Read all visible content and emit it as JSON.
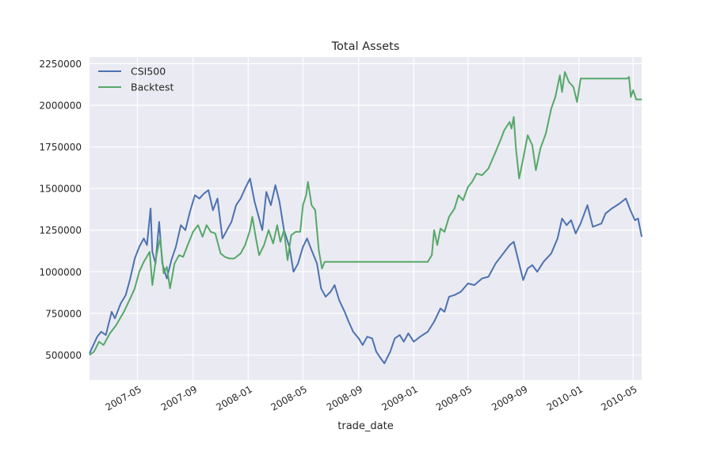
{
  "chart_data": {
    "type": "line",
    "title": "Total Assets",
    "xlabel": "trade_date",
    "ylabel": "",
    "xlim": [
      "2007-01-15",
      "2010-05-20"
    ],
    "ylim": [
      350000,
      2290000
    ],
    "grid": true,
    "legend_position": "top-left",
    "x_ticks": [
      "2007-05",
      "2007-09",
      "2008-01",
      "2008-05",
      "2008-09",
      "2009-01",
      "2009-05",
      "2009-09",
      "2010-01",
      "2010-05"
    ],
    "y_ticks": [
      500000,
      750000,
      1000000,
      1250000,
      1500000,
      1750000,
      2000000,
      2250000
    ],
    "series": [
      {
        "name": "CSI500",
        "color": "#4C72B0",
        "points": [
          [
            "2007-01-15",
            510000
          ],
          [
            "2007-02-01",
            610000
          ],
          [
            "2007-02-10",
            640000
          ],
          [
            "2007-02-20",
            620000
          ],
          [
            "2007-03-05",
            760000
          ],
          [
            "2007-03-12",
            720000
          ],
          [
            "2007-03-25",
            810000
          ],
          [
            "2007-04-05",
            860000
          ],
          [
            "2007-04-15",
            960000
          ],
          [
            "2007-04-25",
            1080000
          ],
          [
            "2007-05-05",
            1150000
          ],
          [
            "2007-05-15",
            1200000
          ],
          [
            "2007-05-22",
            1160000
          ],
          [
            "2007-05-30",
            1380000
          ],
          [
            "2007-06-03",
            1120000
          ],
          [
            "2007-06-10",
            1050000
          ],
          [
            "2007-06-18",
            1300000
          ],
          [
            "2007-06-25",
            1050000
          ],
          [
            "2007-07-05",
            960000
          ],
          [
            "2007-07-15",
            1070000
          ],
          [
            "2007-07-25",
            1150000
          ],
          [
            "2007-08-05",
            1280000
          ],
          [
            "2007-08-15",
            1250000
          ],
          [
            "2007-08-25",
            1360000
          ],
          [
            "2007-09-05",
            1460000
          ],
          [
            "2007-09-15",
            1440000
          ],
          [
            "2007-09-25",
            1470000
          ],
          [
            "2007-10-05",
            1490000
          ],
          [
            "2007-10-15",
            1370000
          ],
          [
            "2007-10-25",
            1440000
          ],
          [
            "2007-11-05",
            1200000
          ],
          [
            "2007-11-15",
            1250000
          ],
          [
            "2007-11-25",
            1300000
          ],
          [
            "2007-12-05",
            1400000
          ],
          [
            "2007-12-15",
            1440000
          ],
          [
            "2007-12-25",
            1500000
          ],
          [
            "2008-01-05",
            1560000
          ],
          [
            "2008-01-15",
            1420000
          ],
          [
            "2008-01-22",
            1350000
          ],
          [
            "2008-02-01",
            1250000
          ],
          [
            "2008-02-10",
            1480000
          ],
          [
            "2008-02-20",
            1400000
          ],
          [
            "2008-03-01",
            1520000
          ],
          [
            "2008-03-10",
            1420000
          ],
          [
            "2008-03-20",
            1250000
          ],
          [
            "2008-04-01",
            1150000
          ],
          [
            "2008-04-10",
            1000000
          ],
          [
            "2008-04-20",
            1050000
          ],
          [
            "2008-05-01",
            1150000
          ],
          [
            "2008-05-10",
            1200000
          ],
          [
            "2008-05-20",
            1130000
          ],
          [
            "2008-06-01",
            1050000
          ],
          [
            "2008-06-10",
            900000
          ],
          [
            "2008-06-20",
            850000
          ],
          [
            "2008-07-01",
            880000
          ],
          [
            "2008-07-10",
            920000
          ],
          [
            "2008-07-20",
            830000
          ],
          [
            "2008-08-01",
            760000
          ],
          [
            "2008-08-10",
            700000
          ],
          [
            "2008-08-20",
            640000
          ],
          [
            "2008-09-01",
            600000
          ],
          [
            "2008-09-10",
            560000
          ],
          [
            "2008-09-20",
            610000
          ],
          [
            "2008-10-01",
            600000
          ],
          [
            "2008-10-10",
            520000
          ],
          [
            "2008-10-20",
            480000
          ],
          [
            "2008-10-28",
            450000
          ],
          [
            "2008-11-10",
            520000
          ],
          [
            "2008-11-20",
            600000
          ],
          [
            "2008-12-01",
            620000
          ],
          [
            "2008-12-10",
            580000
          ],
          [
            "2008-12-20",
            630000
          ],
          [
            "2009-01-01",
            580000
          ],
          [
            "2009-01-15",
            610000
          ],
          [
            "2009-02-01",
            640000
          ],
          [
            "2009-02-15",
            700000
          ],
          [
            "2009-03-01",
            780000
          ],
          [
            "2009-03-10",
            760000
          ],
          [
            "2009-03-20",
            850000
          ],
          [
            "2009-04-01",
            860000
          ],
          [
            "2009-04-15",
            880000
          ],
          [
            "2009-05-01",
            930000
          ],
          [
            "2009-05-15",
            920000
          ],
          [
            "2009-06-01",
            960000
          ],
          [
            "2009-06-15",
            970000
          ],
          [
            "2009-07-01",
            1050000
          ],
          [
            "2009-07-15",
            1100000
          ],
          [
            "2009-08-01",
            1160000
          ],
          [
            "2009-08-10",
            1180000
          ],
          [
            "2009-08-20",
            1070000
          ],
          [
            "2009-08-31",
            950000
          ],
          [
            "2009-09-10",
            1020000
          ],
          [
            "2009-09-20",
            1040000
          ],
          [
            "2009-10-01",
            1000000
          ],
          [
            "2009-10-15",
            1060000
          ],
          [
            "2009-11-01",
            1110000
          ],
          [
            "2009-11-15",
            1200000
          ],
          [
            "2009-11-25",
            1320000
          ],
          [
            "2009-12-05",
            1280000
          ],
          [
            "2009-12-15",
            1310000
          ],
          [
            "2009-12-25",
            1230000
          ],
          [
            "2010-01-05",
            1290000
          ],
          [
            "2010-01-20",
            1400000
          ],
          [
            "2010-02-01",
            1270000
          ],
          [
            "2010-02-20",
            1290000
          ],
          [
            "2010-03-01",
            1350000
          ],
          [
            "2010-03-15",
            1380000
          ],
          [
            "2010-04-01",
            1410000
          ],
          [
            "2010-04-15",
            1440000
          ],
          [
            "2010-04-25",
            1370000
          ],
          [
            "2010-05-05",
            1310000
          ],
          [
            "2010-05-12",
            1320000
          ],
          [
            "2010-05-20",
            1210000
          ]
        ]
      },
      {
        "name": "Backtest",
        "color": "#55A868",
        "points": [
          [
            "2007-01-15",
            500000
          ],
          [
            "2007-01-25",
            520000
          ],
          [
            "2007-02-05",
            580000
          ],
          [
            "2007-02-15",
            560000
          ],
          [
            "2007-03-01",
            630000
          ],
          [
            "2007-03-15",
            680000
          ],
          [
            "2007-04-01",
            760000
          ],
          [
            "2007-04-15",
            840000
          ],
          [
            "2007-04-25",
            900000
          ],
          [
            "2007-05-05",
            1000000
          ],
          [
            "2007-05-15",
            1060000
          ],
          [
            "2007-05-28",
            1120000
          ],
          [
            "2007-06-03",
            920000
          ],
          [
            "2007-06-12",
            1100000
          ],
          [
            "2007-06-20",
            1200000
          ],
          [
            "2007-06-28",
            990000
          ],
          [
            "2007-07-05",
            1030000
          ],
          [
            "2007-07-12",
            900000
          ],
          [
            "2007-07-22",
            1050000
          ],
          [
            "2007-08-01",
            1100000
          ],
          [
            "2007-08-10",
            1090000
          ],
          [
            "2007-08-20",
            1160000
          ],
          [
            "2007-09-01",
            1240000
          ],
          [
            "2007-09-12",
            1280000
          ],
          [
            "2007-09-22",
            1210000
          ],
          [
            "2007-10-01",
            1280000
          ],
          [
            "2007-10-10",
            1240000
          ],
          [
            "2007-10-20",
            1230000
          ],
          [
            "2007-11-01",
            1110000
          ],
          [
            "2007-11-10",
            1090000
          ],
          [
            "2007-11-20",
            1080000
          ],
          [
            "2007-12-01",
            1080000
          ],
          [
            "2007-12-15",
            1110000
          ],
          [
            "2007-12-25",
            1160000
          ],
          [
            "2008-01-05",
            1250000
          ],
          [
            "2008-01-10",
            1330000
          ],
          [
            "2008-01-18",
            1200000
          ],
          [
            "2008-01-25",
            1100000
          ],
          [
            "2008-02-05",
            1160000
          ],
          [
            "2008-02-15",
            1250000
          ],
          [
            "2008-02-25",
            1170000
          ],
          [
            "2008-03-05",
            1280000
          ],
          [
            "2008-03-12",
            1180000
          ],
          [
            "2008-03-20",
            1250000
          ],
          [
            "2008-03-28",
            1070000
          ],
          [
            "2008-04-05",
            1220000
          ],
          [
            "2008-04-15",
            1240000
          ],
          [
            "2008-04-25",
            1240000
          ],
          [
            "2008-05-01",
            1400000
          ],
          [
            "2008-05-08",
            1460000
          ],
          [
            "2008-05-12",
            1540000
          ],
          [
            "2008-05-20",
            1400000
          ],
          [
            "2008-05-28",
            1370000
          ],
          [
            "2008-06-05",
            1130000
          ],
          [
            "2008-06-12",
            1020000
          ],
          [
            "2008-06-18",
            1060000
          ],
          [
            "2008-07-01",
            1060000
          ],
          [
            "2008-09-01",
            1060000
          ],
          [
            "2008-11-01",
            1060000
          ],
          [
            "2009-01-01",
            1060000
          ],
          [
            "2009-02-01",
            1060000
          ],
          [
            "2009-02-10",
            1100000
          ],
          [
            "2009-02-15",
            1250000
          ],
          [
            "2009-02-22",
            1160000
          ],
          [
            "2009-03-01",
            1260000
          ],
          [
            "2009-03-10",
            1240000
          ],
          [
            "2009-03-20",
            1330000
          ],
          [
            "2009-04-01",
            1380000
          ],
          [
            "2009-04-10",
            1460000
          ],
          [
            "2009-04-20",
            1430000
          ],
          [
            "2009-05-01",
            1510000
          ],
          [
            "2009-05-10",
            1540000
          ],
          [
            "2009-05-20",
            1590000
          ],
          [
            "2009-06-01",
            1580000
          ],
          [
            "2009-06-15",
            1620000
          ],
          [
            "2009-07-01",
            1720000
          ],
          [
            "2009-07-10",
            1780000
          ],
          [
            "2009-07-20",
            1850000
          ],
          [
            "2009-08-01",
            1900000
          ],
          [
            "2009-08-05",
            1860000
          ],
          [
            "2009-08-10",
            1930000
          ],
          [
            "2009-08-15",
            1740000
          ],
          [
            "2009-08-22",
            1560000
          ],
          [
            "2009-08-31",
            1680000
          ],
          [
            "2009-09-10",
            1820000
          ],
          [
            "2009-09-20",
            1760000
          ],
          [
            "2009-09-28",
            1610000
          ],
          [
            "2009-10-08",
            1740000
          ],
          [
            "2009-10-20",
            1830000
          ],
          [
            "2009-11-01",
            1980000
          ],
          [
            "2009-11-10",
            2050000
          ],
          [
            "2009-11-20",
            2180000
          ],
          [
            "2009-11-25",
            2080000
          ],
          [
            "2009-12-01",
            2200000
          ],
          [
            "2009-12-10",
            2140000
          ],
          [
            "2009-12-20",
            2110000
          ],
          [
            "2009-12-28",
            2020000
          ],
          [
            "2010-01-05",
            2160000
          ],
          [
            "2010-01-20",
            2160000
          ],
          [
            "2010-02-15",
            2160000
          ],
          [
            "2010-03-15",
            2160000
          ],
          [
            "2010-04-01",
            2160000
          ],
          [
            "2010-04-18",
            2160000
          ],
          [
            "2010-04-22",
            2170000
          ],
          [
            "2010-04-26",
            2050000
          ],
          [
            "2010-05-01",
            2090000
          ],
          [
            "2010-05-08",
            2035000
          ],
          [
            "2010-05-20",
            2035000
          ]
        ]
      }
    ]
  }
}
